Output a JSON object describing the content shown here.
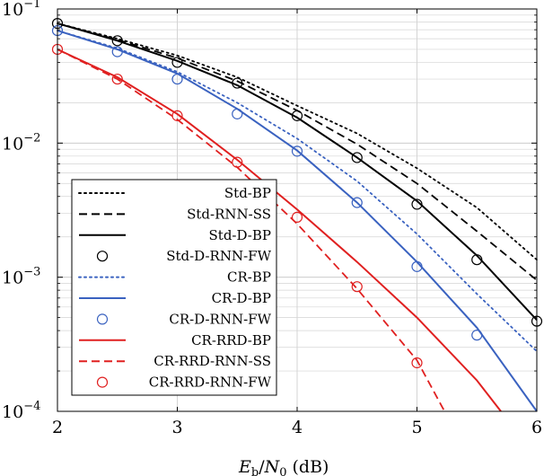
{
  "chart_data": {
    "type": "line",
    "title": "",
    "xlabel": "E_b/N_0 (dB)",
    "ylabel": "",
    "xlim": [
      2,
      6
    ],
    "ylim": [
      0.0001,
      0.1
    ],
    "yscale": "log",
    "x_ticks": [
      2,
      3,
      4,
      5,
      6
    ],
    "x_tick_labels": [
      "2",
      "3",
      "4",
      "5",
      "6"
    ],
    "y_ticks": [
      0.1,
      0.01,
      0.001,
      0.0001
    ],
    "y_tick_labels": [
      {
        "base": "10",
        "exp": "−1"
      },
      {
        "base": "10",
        "exp": "−2"
      },
      {
        "base": "10",
        "exp": "−3"
      },
      {
        "base": "10",
        "exp": "−4"
      }
    ],
    "xlabel_parts": {
      "main1": "E",
      "sub1": "b",
      "slash": "/",
      "main2": "N",
      "sub2": "0",
      "unit": "(dB)"
    },
    "grid": true,
    "legend_position": "lower-left",
    "series": [
      {
        "name": "Std-BP",
        "color": "#000000",
        "style": "dotted",
        "x": [
          2,
          2.5,
          3,
          3.5,
          4,
          4.5,
          5,
          5.5,
          6
        ],
        "y": [
          0.078,
          0.06,
          0.045,
          0.031,
          0.019,
          0.0118,
          0.0065,
          0.0033,
          0.00135
        ]
      },
      {
        "name": "Std-RNN-SS",
        "color": "#000000",
        "style": "dashed",
        "x": [
          2,
          2.5,
          3,
          3.5,
          4,
          4.5,
          5,
          5.5,
          6
        ],
        "y": [
          0.078,
          0.059,
          0.043,
          0.029,
          0.0175,
          0.0098,
          0.005,
          0.0022,
          0.00095
        ]
      },
      {
        "name": "Std-D-BP",
        "color": "#000000",
        "style": "solid",
        "x": [
          2,
          2.5,
          3,
          3.5,
          4,
          4.5,
          5,
          5.5,
          6
        ],
        "y": [
          0.078,
          0.058,
          0.041,
          0.027,
          0.0155,
          0.0078,
          0.0037,
          0.00145,
          0.00048
        ]
      },
      {
        "name": "Std-D-RNN-FW",
        "color": "#000000",
        "style": "markers",
        "x": [
          2,
          2.5,
          3,
          3.5,
          4,
          4.5,
          5,
          5.5,
          6
        ],
        "y": [
          0.078,
          0.058,
          0.04,
          0.028,
          0.016,
          0.0078,
          0.0035,
          0.00135,
          0.00047
        ]
      },
      {
        "name": "CR-BP",
        "color": "#3a62c0",
        "style": "dotted",
        "x": [
          2,
          2.5,
          3,
          3.5,
          4,
          4.5,
          5,
          5.5,
          6
        ],
        "y": [
          0.069,
          0.051,
          0.034,
          0.02,
          0.0108,
          0.0052,
          0.0021,
          0.00075,
          0.00028
        ]
      },
      {
        "name": "CR-D-BP",
        "color": "#3a62c0",
        "style": "solid",
        "x": [
          2,
          2.5,
          3,
          3.5,
          4,
          4.5,
          5,
          5.5,
          6
        ],
        "y": [
          0.069,
          0.05,
          0.033,
          0.018,
          0.0088,
          0.0036,
          0.0013,
          0.00042,
          0.0001
        ]
      },
      {
        "name": "CR-D-RNN-FW",
        "color": "#3a62c0",
        "style": "markers",
        "x": [
          2,
          2.5,
          3,
          3.5,
          4,
          4.5,
          5,
          5.5
        ],
        "y": [
          0.069,
          0.048,
          0.03,
          0.0165,
          0.0087,
          0.0036,
          0.0012,
          0.00037
        ]
      },
      {
        "name": "CR-RRD-BP",
        "color": "#e02020",
        "style": "solid",
        "x": [
          2,
          2.5,
          3,
          3.5,
          4,
          4.5,
          5,
          5.5,
          5.7
        ],
        "y": [
          0.05,
          0.031,
          0.0165,
          0.0075,
          0.0032,
          0.0013,
          0.0005,
          0.00017,
          0.0001
        ]
      },
      {
        "name": "CR-RRD-RNN-SS",
        "color": "#e02020",
        "style": "dashed",
        "x": [
          2,
          2.5,
          3,
          3.5,
          4,
          4.5,
          5,
          5.23
        ],
        "y": [
          0.05,
          0.03,
          0.015,
          0.0066,
          0.0025,
          0.00082,
          0.00024,
          0.0001
        ]
      },
      {
        "name": "CR-RRD-RNN-FW",
        "color": "#e02020",
        "style": "markers",
        "x": [
          2,
          2.5,
          3,
          3.5,
          4,
          4.5,
          5
        ],
        "y": [
          0.05,
          0.03,
          0.016,
          0.0072,
          0.0028,
          0.00085,
          0.00023
        ]
      }
    ]
  }
}
